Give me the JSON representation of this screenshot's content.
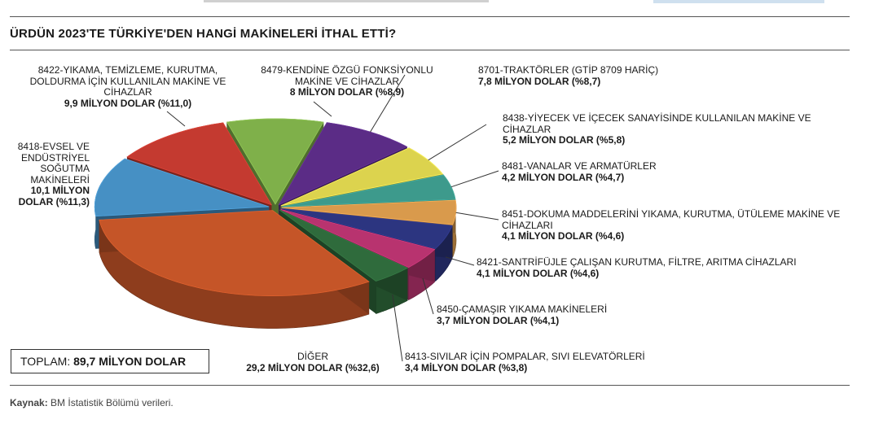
{
  "title": "ÜRDÜN 2023'TE TÜRKİYE'DEN HANGİ MAKİNELERİ İTHAL ETTİ?",
  "total": {
    "label": "TOPLAM:",
    "value": "89,7 MİLYON DOLAR"
  },
  "source": {
    "label": "Kaynak:",
    "text": "BM İstatistik Bölümü verileri."
  },
  "chart_data": {
    "type": "pie",
    "unit": "MİLYON DOLAR",
    "slices": [
      {
        "name": "8701-TRAKTÖRLER (GTİP 8709 HARİÇ)",
        "value": 7.8,
        "percent": 8.7,
        "value_label": "7,8 MİLYON DOLAR (%8,7)",
        "color": "#5b2c86"
      },
      {
        "name": "8438-YİYECEK VE İÇECEK SANAYİSİNDE KULLANILAN MAKİNE VE CİHAZLAR",
        "value": 5.2,
        "percent": 5.8,
        "value_label": "5,2 MİLYON DOLAR (%5,8)",
        "color": "#dcd34e"
      },
      {
        "name": "8481-VANALAR VE ARMATÜRLER",
        "value": 4.2,
        "percent": 4.7,
        "value_label": "4,2 MİLYON DOLAR (%4,7)",
        "color": "#3d9a8c"
      },
      {
        "name": "8451-DOKUMA MADDELERİNİ YIKAMA, KURUTMA, ÜTÜLEME MAKİNE VE CİHAZLARI",
        "value": 4.1,
        "percent": 4.6,
        "value_label": "4,1 MİLYON DOLAR (%4,6)",
        "color": "#d99a4c"
      },
      {
        "name": "8421-SANTRİFÜJLE ÇALIŞAN KURUTMA, FİLTRE, ARITMA CİHAZLARI",
        "value": 4.1,
        "percent": 4.6,
        "value_label": "4,1 MİLYON DOLAR (%4,6)",
        "color": "#2c3580"
      },
      {
        "name": "8450-ÇAMAŞIR YIKAMA MAKİNELERİ",
        "value": 3.7,
        "percent": 4.1,
        "value_label": "3,7 MİLYON DOLAR (%4,1)",
        "color": "#b8336f"
      },
      {
        "name": "8413-SIVILAR İÇİN POMPALAR, SIVI ELEVATÖRLERİ",
        "value": 3.4,
        "percent": 3.8,
        "value_label": "3,4 MİLYON DOLAR (%3,8)",
        "color": "#2f6b3c"
      },
      {
        "name": "DİĞER",
        "value": 29.2,
        "percent": 32.6,
        "value_label": "29,2 MİLYON DOLAR (%32,6)",
        "color": "#c55528"
      },
      {
        "name": "8418-EVSEL VE ENDÜSTRİYEL SOĞUTMA MAKİNELERİ",
        "value": 10.1,
        "percent": 11.3,
        "value_label": "10,1 MİLYON DOLAR (%11,3)",
        "color": "#4690c4"
      },
      {
        "name": "8422-YIKAMA, TEMİZLEME, KURUTMA, DOLDURMA İÇİN KULLANILAN MAKİNE VE CİHAZLAR",
        "value": 9.9,
        "percent": 11.0,
        "value_label": "9,9 MİLYON DOLAR (%11,0)",
        "color": "#c43a30"
      },
      {
        "name": "8479-KENDİNE ÖZGÜ FONKSİYONLU MAKİNE VE CİHAZLAR",
        "value": 8.0,
        "percent": 8.9,
        "value_label": "8 MİLYON DOLAR (%8,9)",
        "color": "#7fb04a"
      }
    ]
  }
}
